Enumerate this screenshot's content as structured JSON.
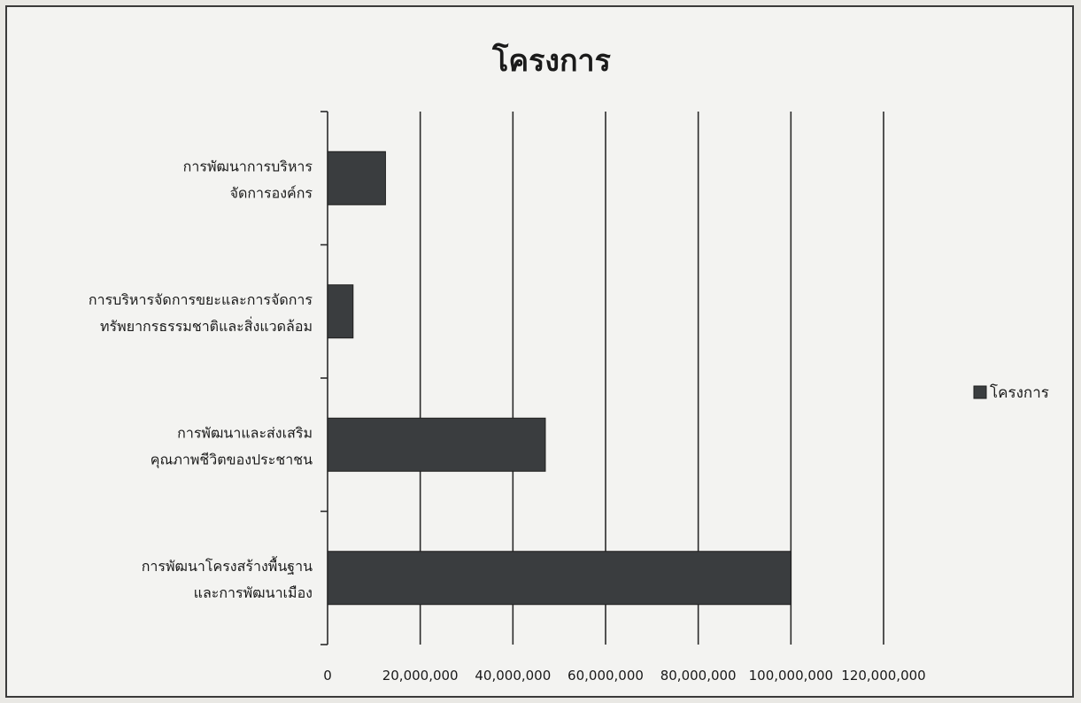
{
  "chart_data": {
    "type": "bar",
    "orientation": "horizontal",
    "title": "โครงการ",
    "categories": [
      [
        "การพัฒนาโครงสร้างพื้นฐาน",
        "และการพัฒนาเมือง"
      ],
      [
        "การพัฒนาและส่งเสริม",
        "คุณภาพชีวิตของประชาชน"
      ],
      [
        "การบริหารจัดการขยะและการจัดการ",
        "ทรัพยากรธรรมชาติและสิ่งแวดล้อม"
      ],
      [
        "การพัฒนาการบริหาร",
        "จัดการองค์กร"
      ]
    ],
    "series": [
      {
        "name": "โครงการ",
        "values": [
          100000000,
          47000000,
          5500000,
          12500000
        ]
      }
    ],
    "xlim": [
      0,
      120000000
    ],
    "xticks": [
      "0",
      "20,000,000",
      "40,000,000",
      "60,000,000",
      "80,000,000",
      "100,000,000",
      "120,000,000"
    ],
    "grid": true,
    "legend_position": "right",
    "bar_color": "#3a3d3f"
  }
}
